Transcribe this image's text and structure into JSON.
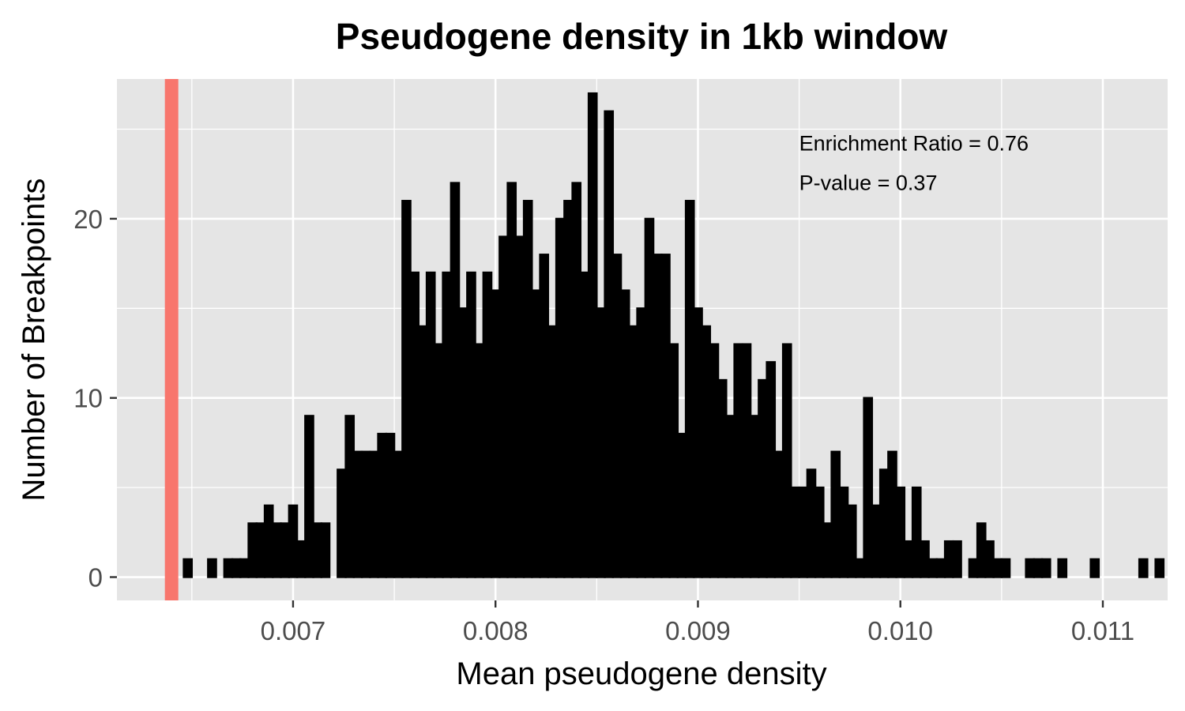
{
  "chart_data": {
    "type": "bar",
    "title": "Pseudogene density in 1kb window",
    "xlabel": "Mean pseudogene density",
    "ylabel": "Number of Breakpoints",
    "xlim": [
      0.00613,
      0.01132
    ],
    "ylim": [
      -1.3,
      27.8
    ],
    "x_ticks": [
      0.007,
      0.008,
      0.009,
      0.01,
      0.011
    ],
    "x_tick_labels": [
      "0.007",
      "0.008",
      "0.009",
      "0.010",
      "0.011"
    ],
    "y_ticks": [
      0,
      10,
      20
    ],
    "y_tick_labels": [
      "0",
      "10",
      "20"
    ],
    "y_minor_ticks": [
      5,
      15,
      25
    ],
    "grid": true,
    "bins": {
      "start": 0.00646,
      "width": 4e-05,
      "counts": [
        1,
        0,
        0,
        1,
        0,
        1,
        1,
        1,
        3,
        3,
        4,
        3,
        3,
        4,
        2,
        9,
        3,
        3,
        0,
        6,
        9,
        7,
        7,
        7,
        8,
        8,
        7,
        21,
        17,
        14,
        17,
        13,
        17,
        22,
        15,
        17,
        13,
        17,
        16,
        19,
        22,
        19,
        21,
        16,
        18,
        14,
        20,
        21,
        22,
        17,
        27,
        15,
        26,
        18,
        16,
        14,
        15,
        20,
        18,
        18,
        13,
        8,
        21,
        15,
        14,
        13,
        11,
        9,
        13,
        13,
        9,
        11,
        12,
        7,
        13,
        5,
        5,
        6,
        5,
        3,
        7,
        5,
        4,
        1,
        10,
        4,
        6,
        7,
        5,
        2,
        5,
        2,
        1,
        1,
        2,
        2,
        0,
        1,
        3,
        2,
        1,
        1,
        0,
        0,
        1,
        1,
        1,
        0,
        1,
        0,
        0,
        0,
        1,
        0,
        0,
        0,
        0,
        0,
        1,
        0,
        1
      ]
    },
    "observed_line": {
      "x": 0.0064,
      "color": "#f8766d"
    },
    "bar_color": "#000000",
    "panel_background": "#e5e5e5",
    "grid_color": "#ffffff",
    "annotations": [
      "Enrichment Ratio = 0.76",
      "P-value = 0.37"
    ],
    "annotation_anchor": {
      "x": 0.0095,
      "y": [
        24.2,
        22.0
      ]
    }
  }
}
